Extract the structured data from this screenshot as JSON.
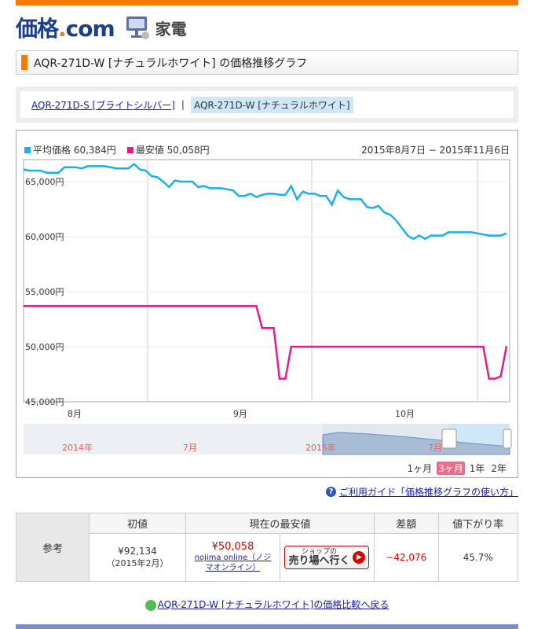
{
  "header": {
    "logo_main": "価格",
    "logo_dot": ".",
    "logo_com": "com",
    "category": "家電",
    "brand_color": "#1b3e8f",
    "accent_color": "#f57c00"
  },
  "page_title": "AQR-271D-W [ナチュラルホワイト] の価格推移グラフ",
  "variants": [
    {
      "label": "AQR-271D-S [ブライトシルバー]",
      "active": false
    },
    {
      "label": "AQR-271D-W [ナチュラルホワイト]",
      "active": true
    }
  ],
  "variant_sep": "|",
  "legend": {
    "avg_label": "平均価格 60,384円",
    "min_label": "最安値 50,058円",
    "range": "2015年8月7日 − 2015年11月6日"
  },
  "navigator": {
    "labels": [
      "2014年",
      "7月",
      "2015年",
      "7月"
    ]
  },
  "period_options": [
    {
      "label": "1ヶ月",
      "active": false
    },
    {
      "label": "3ヶ月",
      "active": true
    },
    {
      "label": "1年",
      "active": false
    },
    {
      "label": "2年",
      "active": false
    }
  ],
  "guide_link": "ご利用ガイド「価格推移グラフの使い方」",
  "reference_table": {
    "row_label": "参考",
    "headers": [
      "初値",
      "現在の最安値",
      "差額",
      "値下がり率"
    ],
    "initial_price": "¥92,134",
    "initial_date": "（2015年2月）",
    "current_price": "¥50,058",
    "shop_name": "nojima online（ノジマオンライン）",
    "shop_btn_small": "ショップの",
    "shop_btn_big": "売り場へ行く",
    "difference": "−42,076",
    "drop_rate": "45.7%"
  },
  "back_link": "AQR-271D-W [ナチュラルホワイト]の価格比較へ戻る",
  "chart_data": {
    "type": "line",
    "title": "",
    "x_labels": [
      "8月",
      "9月",
      "10月"
    ],
    "y_ticks": [
      "65,000円",
      "60,000円",
      "55,000円",
      "50,000円",
      "45,000円"
    ],
    "ylim": [
      45000,
      67000
    ],
    "grid": true,
    "series": [
      {
        "name": "平均価格",
        "color": "#1ab0ea",
        "values": [
          66100,
          66000,
          66000,
          66000,
          65800,
          65800,
          65800,
          66300,
          66300,
          66300,
          66200,
          66400,
          66400,
          66400,
          66400,
          66300,
          66200,
          66200,
          66200,
          66600,
          66100,
          66000,
          65500,
          65400,
          65000,
          64500,
          65100,
          65000,
          65000,
          65000,
          64500,
          64600,
          64400,
          64400,
          64400,
          64300,
          64200,
          63700,
          63700,
          63900,
          63600,
          63800,
          63900,
          63900,
          63800,
          63800,
          64600,
          63400,
          64100,
          63900,
          63900,
          63700,
          63700,
          62900,
          64200,
          63600,
          63400,
          63400,
          63400,
          62700,
          62600,
          62800,
          62200,
          62000,
          61500,
          60800,
          60100,
          59800,
          60100,
          59800,
          60100,
          60100,
          60100,
          60400,
          60400,
          60400,
          60400,
          60400,
          60300,
          60200,
          60100,
          60100,
          60100,
          60300
        ]
      },
      {
        "name": "最安値",
        "color": "#e8198b",
        "values": [
          53700,
          53700,
          53700,
          53700,
          53700,
          53700,
          53700,
          53700,
          53700,
          53700,
          53700,
          53700,
          53700,
          53700,
          53700,
          53700,
          53700,
          53700,
          53700,
          53700,
          53700,
          53700,
          53700,
          53700,
          53700,
          53700,
          53700,
          53700,
          53700,
          53700,
          53700,
          53700,
          53700,
          53700,
          53700,
          53700,
          53700,
          53700,
          53700,
          53700,
          53700,
          51700,
          51700,
          51700,
          47100,
          47100,
          50000,
          50000,
          50000,
          50000,
          50000,
          50000,
          50000,
          50000,
          50000,
          50000,
          50000,
          50000,
          50000,
          50000,
          50000,
          50000,
          50000,
          50000,
          50000,
          50000,
          50000,
          50000,
          50000,
          50000,
          50000,
          50000,
          50000,
          50000,
          50000,
          50000,
          50000,
          50000,
          50000,
          50000,
          47100,
          47100,
          47300,
          50058
        ]
      }
    ]
  }
}
